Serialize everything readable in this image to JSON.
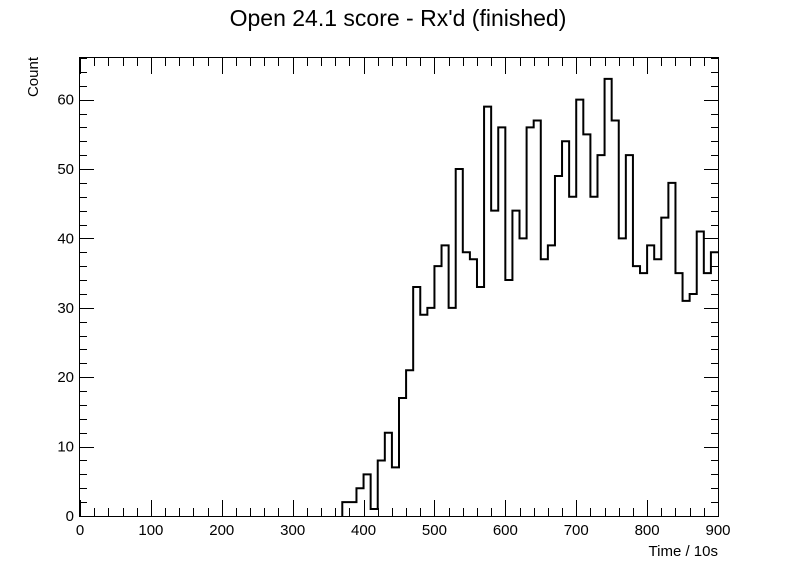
{
  "chart_data": {
    "type": "bar",
    "style": "step-histogram",
    "title": "Open 24.1 score - Rx'd (finished)",
    "xlabel": "Time / 10s",
    "ylabel": "Count",
    "xlim": [
      0,
      900
    ],
    "ylim": [
      0,
      66
    ],
    "bin_width": 10,
    "x_ticks": [
      0,
      100,
      200,
      300,
      400,
      500,
      600,
      700,
      800,
      900
    ],
    "y_ticks": [
      0,
      10,
      20,
      30,
      40,
      50,
      60
    ],
    "grid": false,
    "bins": [
      {
        "x": 370,
        "value": 2
      },
      {
        "x": 380,
        "value": 2
      },
      {
        "x": 390,
        "value": 4
      },
      {
        "x": 400,
        "value": 6
      },
      {
        "x": 410,
        "value": 1
      },
      {
        "x": 420,
        "value": 8
      },
      {
        "x": 430,
        "value": 12
      },
      {
        "x": 440,
        "value": 7
      },
      {
        "x": 450,
        "value": 17
      },
      {
        "x": 460,
        "value": 21
      },
      {
        "x": 470,
        "value": 33
      },
      {
        "x": 480,
        "value": 29
      },
      {
        "x": 490,
        "value": 30
      },
      {
        "x": 500,
        "value": 36
      },
      {
        "x": 510,
        "value": 39
      },
      {
        "x": 520,
        "value": 30
      },
      {
        "x": 530,
        "value": 50
      },
      {
        "x": 540,
        "value": 38
      },
      {
        "x": 550,
        "value": 37
      },
      {
        "x": 560,
        "value": 33
      },
      {
        "x": 570,
        "value": 59
      },
      {
        "x": 580,
        "value": 44
      },
      {
        "x": 590,
        "value": 56
      },
      {
        "x": 600,
        "value": 34
      },
      {
        "x": 610,
        "value": 44
      },
      {
        "x": 620,
        "value": 40
      },
      {
        "x": 630,
        "value": 56
      },
      {
        "x": 640,
        "value": 57
      },
      {
        "x": 650,
        "value": 37
      },
      {
        "x": 660,
        "value": 39
      },
      {
        "x": 670,
        "value": 49
      },
      {
        "x": 680,
        "value": 54
      },
      {
        "x": 690,
        "value": 46
      },
      {
        "x": 700,
        "value": 60
      },
      {
        "x": 710,
        "value": 55
      },
      {
        "x": 720,
        "value": 46
      },
      {
        "x": 730,
        "value": 52
      },
      {
        "x": 740,
        "value": 63
      },
      {
        "x": 750,
        "value": 57
      },
      {
        "x": 760,
        "value": 40
      },
      {
        "x": 770,
        "value": 52
      },
      {
        "x": 780,
        "value": 36
      },
      {
        "x": 790,
        "value": 35
      },
      {
        "x": 800,
        "value": 39
      },
      {
        "x": 810,
        "value": 37
      },
      {
        "x": 820,
        "value": 43
      },
      {
        "x": 830,
        "value": 48
      },
      {
        "x": 840,
        "value": 35
      },
      {
        "x": 850,
        "value": 31
      },
      {
        "x": 860,
        "value": 32
      },
      {
        "x": 870,
        "value": 41
      },
      {
        "x": 880,
        "value": 35
      },
      {
        "x": 890,
        "value": 38
      }
    ]
  }
}
